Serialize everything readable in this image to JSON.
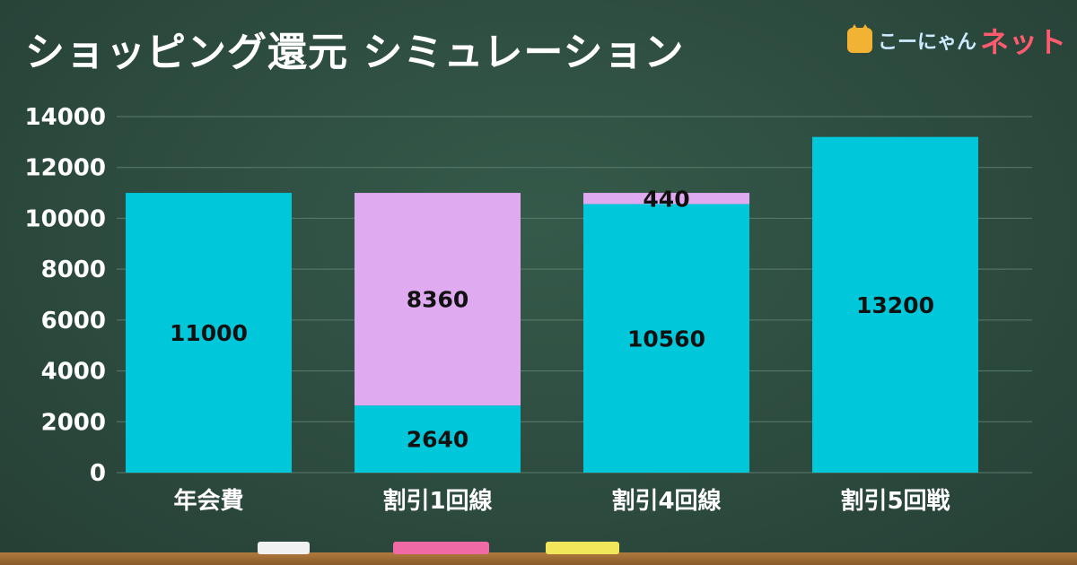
{
  "header": {
    "title": "ショッピング還元 シミュレーション",
    "logo_text1": "こーにゃん",
    "logo_text2": "ネット"
  },
  "colors": {
    "cyan": "#00c8da",
    "lavender": "#e0aaf0",
    "grid": "#5b7b6d",
    "text": "#ffffff",
    "label": "#111111"
  },
  "chart_data": {
    "type": "bar",
    "stacked": true,
    "title": "ショッピング還元 シミュレーション",
    "categories": [
      "年会費",
      "割引1回線",
      "割引4回線",
      "割引5回戦"
    ],
    "series": [
      {
        "values": [
          11000,
          2640,
          10560,
          13200
        ],
        "color": "#00c8da"
      },
      {
        "values": [
          0,
          8360,
          440,
          0
        ],
        "color": "#e0aaf0"
      }
    ],
    "ylim": [
      0,
      14000
    ],
    "yticks": [
      0,
      2000,
      4000,
      6000,
      8000,
      10000,
      12000,
      14000
    ],
    "grid": true,
    "legend": "none"
  },
  "chalks": [
    {
      "color": "#f1f1f1"
    },
    {
      "color": "#f06aa6"
    },
    {
      "color": "#f2e65a"
    }
  ]
}
